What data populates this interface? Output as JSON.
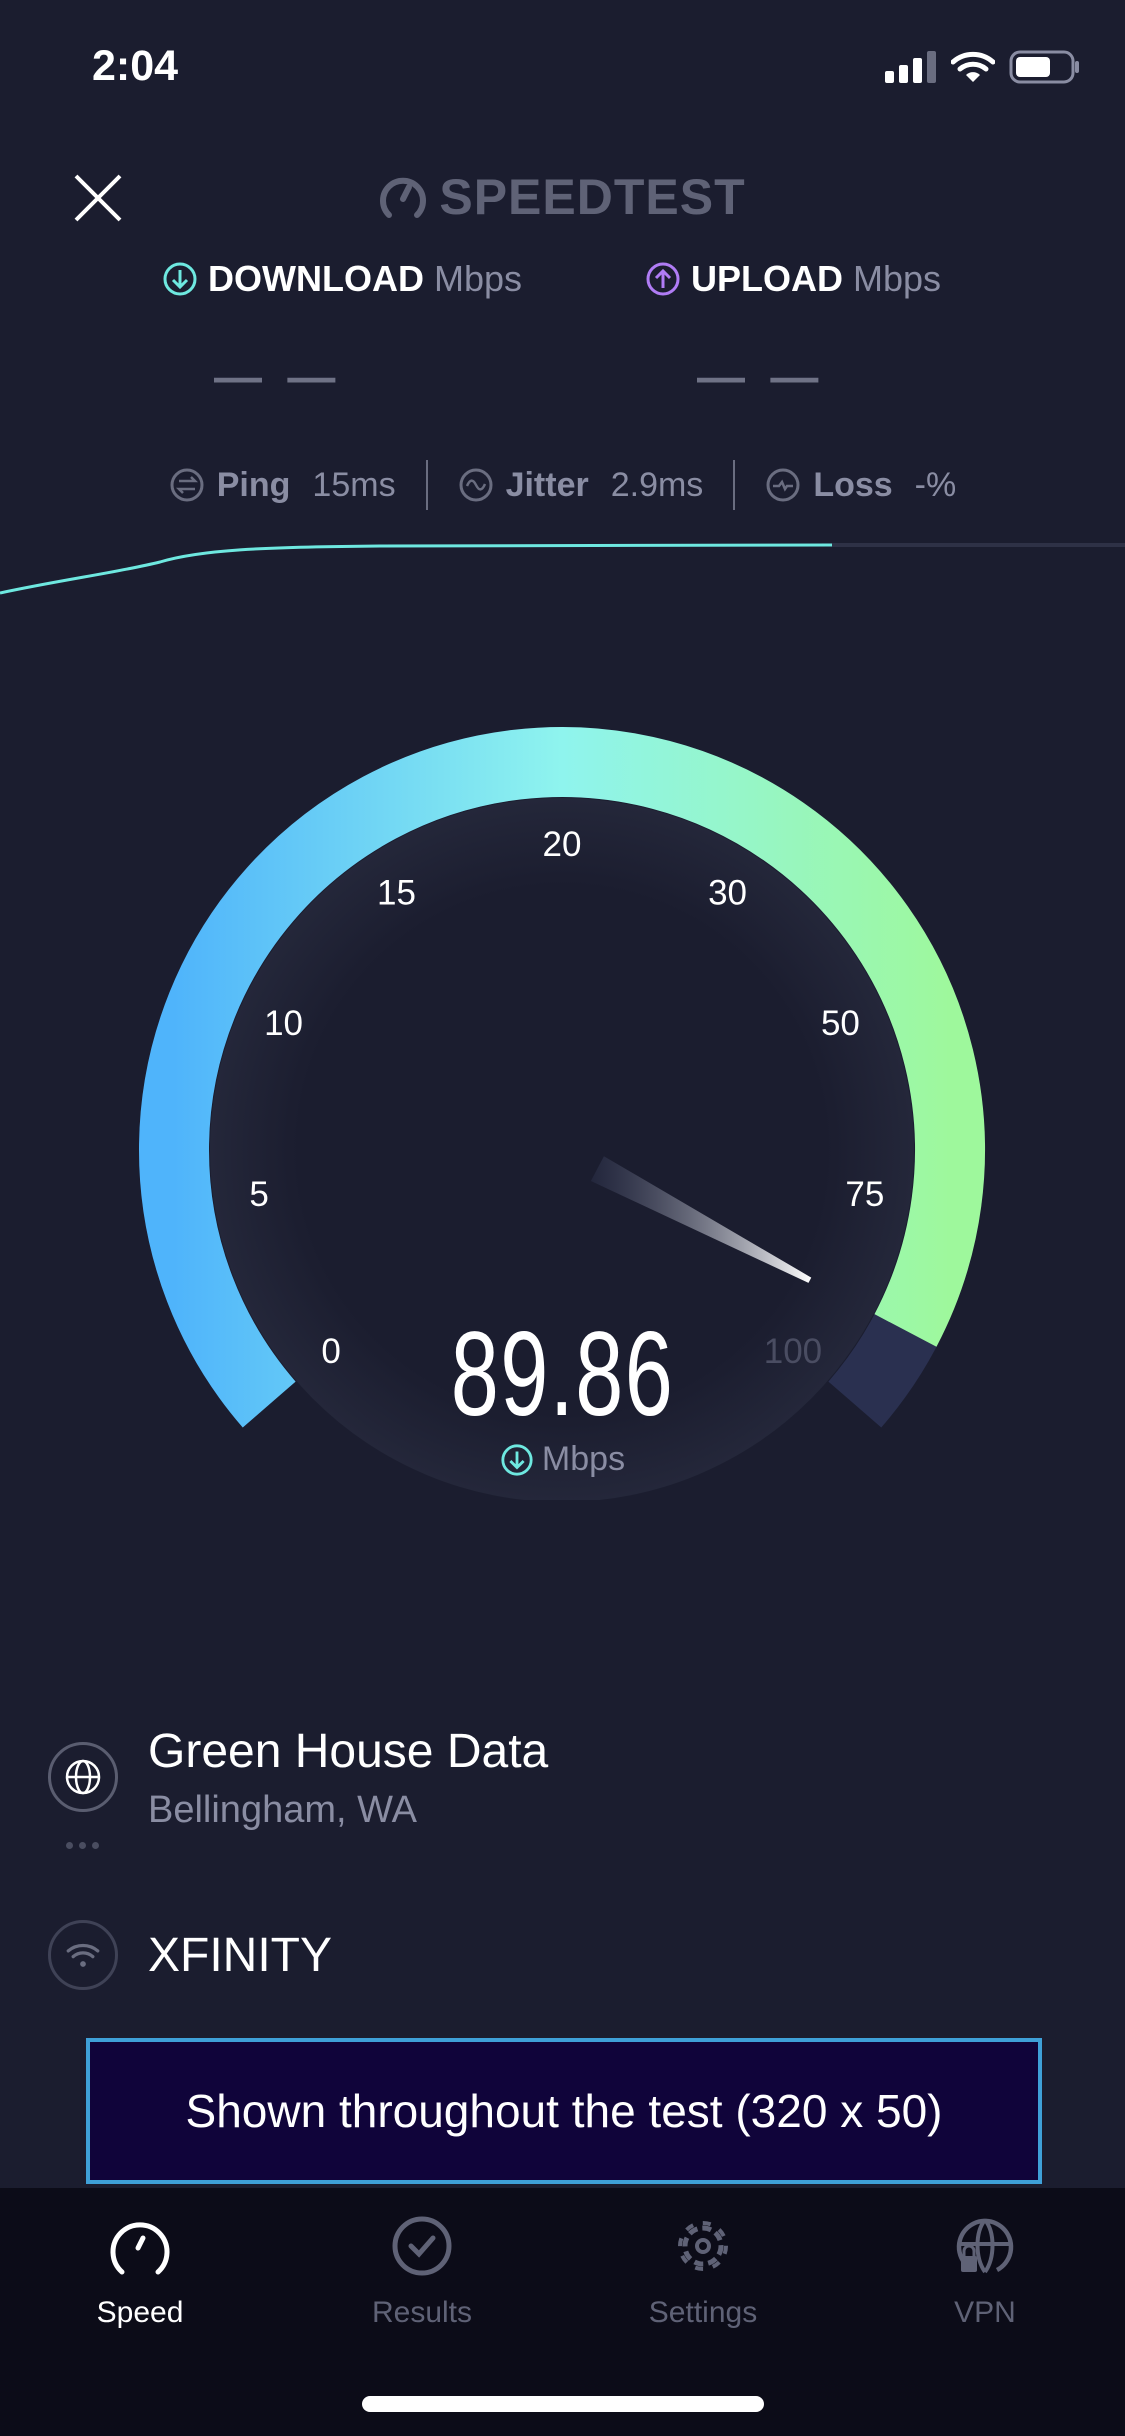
{
  "status_bar": {
    "time": "2:04",
    "icons": [
      "cellular-signal-icon",
      "wifi-icon",
      "battery-icon"
    ]
  },
  "header": {
    "close_icon": "close-icon",
    "logo_text": "SPEEDTEST"
  },
  "results": {
    "download": {
      "label": "DOWNLOAD",
      "unit": "Mbps",
      "value": "— —",
      "color": "#6ee8e0"
    },
    "upload": {
      "label": "UPLOAD",
      "unit": "Mbps",
      "value": "— —",
      "color": "#b07cf5"
    }
  },
  "metrics": {
    "ping": {
      "label": "Ping",
      "value": "15",
      "unit": "ms"
    },
    "jitter": {
      "label": "Jitter",
      "value": "2.9",
      "unit": "ms"
    },
    "loss": {
      "label": "Loss",
      "value": "-",
      "unit": "%"
    }
  },
  "gauge": {
    "ticks": [
      "0",
      "5",
      "10",
      "15",
      "20",
      "30",
      "50",
      "75",
      "100"
    ],
    "value": 89.86,
    "value_text": "89.86",
    "unit": "Mbps",
    "colors": {
      "start": "#4fb4fb",
      "mid": "#8ff4ee",
      "end": "#9ef89c",
      "track": "#2a3050"
    }
  },
  "server": {
    "name": "Green House Data",
    "location": "Bellingham, WA"
  },
  "isp": {
    "name": "XFINITY"
  },
  "ad": {
    "text": "Shown throughout the test (320 x 50)"
  },
  "tabs": [
    {
      "label": "Speed",
      "icon": "speedometer-icon",
      "active": true
    },
    {
      "label": "Results",
      "icon": "check-circle-icon",
      "active": false
    },
    {
      "label": "Settings",
      "icon": "gear-icon",
      "active": false
    },
    {
      "label": "VPN",
      "icon": "globe-lock-icon",
      "active": false
    }
  ]
}
